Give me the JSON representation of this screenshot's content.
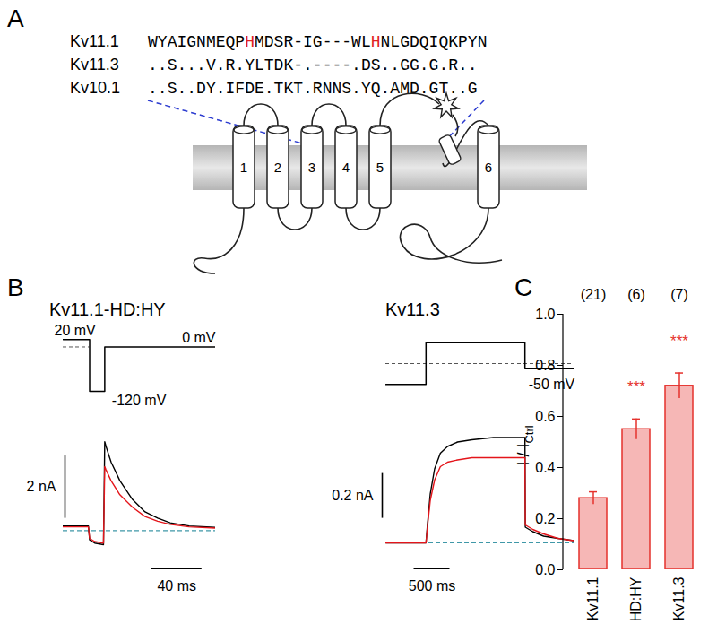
{
  "panel_labels": [
    "A",
    "B",
    "C"
  ],
  "panel_A": {
    "alignment": [
      {
        "name": "Kv11.1",
        "sequence": "WYAIGNMEQPHMDSR-IG---WLHNLGDQIQKPYN",
        "highlight": [
          10,
          23
        ]
      },
      {
        "name": "Kv11.3",
        "sequence": "..S...V.R.YLTDK-.----.DS..GG.G.R.."
      },
      {
        "name": "Kv10.1",
        "sequence": "..S..DY.IFDE.TKT.RNNS.YQ.AMD.GT..G"
      }
    ],
    "highlight_color": "#e02020",
    "segments": [
      "1",
      "2",
      "3",
      "4",
      "5",
      "6"
    ]
  },
  "panel_B": [
    {
      "title": "Kv11.1-HD:HY",
      "protocol": {
        "type": "line",
        "xlim": [
          0,
          121
        ],
        "ylim": [
          -130,
          40
        ],
        "t_ms": [
          0,
          21,
          21,
          33,
          33,
          121
        ],
        "mV": [
          20,
          20,
          -120,
          -120,
          0,
          0
        ],
        "reference": {
          "mV": 0,
          "t_ms": [
            0,
            21
          ]
        },
        "labels": [
          {
            "text": "20 mV",
            "mV": 20
          },
          {
            "text": "0 mV",
            "mV": 0
          },
          {
            "text": "-120 mV",
            "mV": -120
          }
        ]
      },
      "currents": {
        "type": "line",
        "tick_labels": false,
        "xlim": [
          0,
          121
        ],
        "ylim": [
          -1.4,
          3.2
        ],
        "x": [
          0,
          20,
          21,
          25,
          32,
          33,
          34,
          38,
          45,
          55,
          65,
          75,
          85,
          100,
          121
        ],
        "series": [
          {
            "color": "#000000",
            "values": [
              0.15,
              0.15,
              -0.3,
              -0.4,
              -0.45,
              2.85,
              2.7,
              2.2,
              1.6,
              1.0,
              0.6,
              0.4,
              0.25,
              0.15,
              0.1
            ]
          },
          {
            "color": "#e4151b",
            "values": [
              0.12,
              0.12,
              -0.25,
              -0.35,
              -0.4,
              2.05,
              1.95,
              1.6,
              1.15,
              0.75,
              0.45,
              0.3,
              0.2,
              0.12,
              0.08
            ]
          }
        ],
        "reference": 0,
        "scale_bars": [
          {
            "axis": "y",
            "value": 2,
            "label": "2 nA"
          },
          {
            "axis": "x",
            "value": 40,
            "label": "40 ms"
          }
        ]
      }
    },
    {
      "title": "Kv11.3",
      "protocol": {
        "type": "line",
        "xlim": [
          0,
          2625
        ],
        "ylim": [
          -100,
          20
        ],
        "t_ms": [
          0,
          560,
          560,
          1940,
          1940,
          2625
        ],
        "mV": [
          -80,
          -80,
          0,
          0,
          -50,
          -50
        ],
        "reference": {
          "mV": -40,
          "t_ms": [
            0,
            2625
          ]
        },
        "labels": [
          {
            "text": "-50 mV",
            "mV": -50
          }
        ]
      },
      "currents": {
        "type": "line",
        "tick_labels": false,
        "xlim": [
          0,
          2625
        ],
        "ylim": [
          -0.14,
          0.5
        ],
        "x": [
          0,
          560,
          580,
          620,
          680,
          760,
          860,
          1000,
          1200,
          1500,
          1940,
          1945,
          2050,
          2200,
          2400,
          2625
        ],
        "series": [
          {
            "color": "#000000",
            "values": [
              0,
              0,
              0.08,
              0.22,
              0.33,
              0.4,
              0.43,
              0.45,
              0.46,
              0.47,
              0.47,
              0.07,
              0.05,
              0.03,
              0.02,
              0.01
            ]
          },
          {
            "color": "#e4151b",
            "values": [
              0,
              0,
              0.07,
              0.19,
              0.28,
              0.34,
              0.36,
              0.37,
              0.38,
              0.38,
              0.38,
              0.08,
              0.06,
              0.04,
              0.02,
              0.01
            ]
          }
        ],
        "reference": 0,
        "scale_bars": [
          {
            "axis": "y",
            "value": 0.2,
            "label": "0.2 nA"
          },
          {
            "axis": "x",
            "value": 500,
            "label": "500 ms"
          }
        ]
      }
    }
  ],
  "chart_data": {
    "type": "bar",
    "categories": [
      "Kv11.1",
      "HD:HY",
      "Kv11.3"
    ],
    "values": [
      0.28,
      0.55,
      0.72
    ],
    "errors": [
      0.025,
      0.04,
      0.05
    ],
    "n_labels": [
      "(21)",
      "(6)",
      "(7)"
    ],
    "annotations": [
      null,
      "***",
      "***"
    ],
    "ylabel": "I / ICtrl",
    "ylabel_subscript": "Ctrl",
    "ylim": [
      0,
      1
    ],
    "yticks": [
      {
        "value": 0,
        "label": "0.0"
      },
      {
        "value": 0.2,
        "label": "0.2"
      },
      {
        "value": 0.4,
        "label": "0.4"
      },
      {
        "value": 0.6,
        "label": "0.6"
      },
      {
        "value": 0.8,
        "label": "0.8"
      },
      {
        "value": 1,
        "label": "1.0"
      }
    ],
    "color": "#e5322d"
  }
}
